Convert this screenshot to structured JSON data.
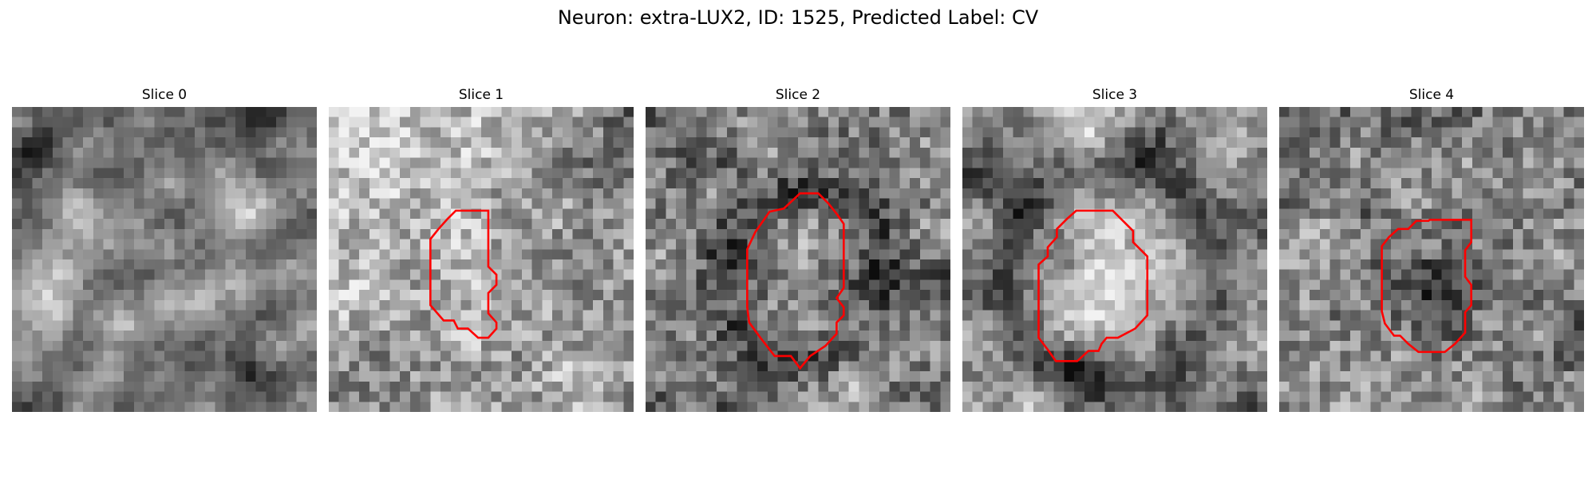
{
  "figure": {
    "title": "Neuron: extra-LUX2, ID: 1525, Predicted Label: CV",
    "contour_color": "#ff0000",
    "colormap": "gray"
  },
  "slices": [
    {
      "label": "Slice 0",
      "seed": 11,
      "pattern": "blotchy",
      "contour": []
    },
    {
      "label": "Slice 1",
      "seed": 23,
      "pattern": "bright-left",
      "contour": [
        [
          10,
          13
        ],
        [
          10.8,
          12
        ],
        [
          11.7,
          11
        ],
        [
          12.5,
          10.2
        ],
        [
          15.7,
          10.2
        ],
        [
          15.7,
          15.7
        ],
        [
          16.5,
          16.5
        ],
        [
          16.5,
          17.5
        ],
        [
          15.7,
          18.3
        ],
        [
          15.7,
          20.3
        ],
        [
          16.5,
          21.2
        ],
        [
          16.5,
          21.8
        ],
        [
          15.7,
          22.7
        ],
        [
          14.7,
          22.7
        ],
        [
          13.7,
          21.8
        ],
        [
          12.7,
          21.8
        ],
        [
          12.3,
          21
        ],
        [
          11.3,
          21
        ],
        [
          10,
          19.5
        ],
        [
          10,
          15.3
        ]
      ]
    },
    {
      "label": "Slice 2",
      "seed": 37,
      "pattern": "dark-ring",
      "contour": [
        [
          10,
          14
        ],
        [
          10.8,
          12.3
        ],
        [
          12.2,
          10.3
        ],
        [
          13.6,
          10
        ],
        [
          15.2,
          8.5
        ],
        [
          17,
          8.5
        ],
        [
          18,
          9.5
        ],
        [
          18.8,
          10.5
        ],
        [
          19.5,
          11.5
        ],
        [
          19.5,
          17.8
        ],
        [
          18.8,
          18.8
        ],
        [
          19.5,
          19.7
        ],
        [
          19.5,
          20.5
        ],
        [
          18.8,
          21.2
        ],
        [
          18.8,
          22.3
        ],
        [
          17.7,
          23.5
        ],
        [
          16.2,
          24.5
        ],
        [
          15.2,
          25.7
        ],
        [
          14.3,
          24.5
        ],
        [
          12.7,
          24.5
        ],
        [
          11.3,
          22.7
        ],
        [
          10.2,
          21.2
        ],
        [
          10,
          19.7
        ]
      ]
    },
    {
      "label": "Slice 3",
      "seed": 41,
      "pattern": "bright-center",
      "contour": [
        [
          7.5,
          18.5
        ],
        [
          7.5,
          15.5
        ],
        [
          8.4,
          14.7
        ],
        [
          8.4,
          13.8
        ],
        [
          9.3,
          12.8
        ],
        [
          9.3,
          12
        ],
        [
          10.3,
          11
        ],
        [
          11.2,
          10.2
        ],
        [
          14.8,
          10.2
        ],
        [
          16.8,
          12.2
        ],
        [
          16.8,
          13.3
        ],
        [
          18.2,
          14.7
        ],
        [
          18.2,
          20.5
        ],
        [
          17,
          21.8
        ],
        [
          15.3,
          22.7
        ],
        [
          14.2,
          22.7
        ],
        [
          13.7,
          23.3
        ],
        [
          13.4,
          24
        ],
        [
          12.4,
          24
        ],
        [
          11.3,
          25
        ],
        [
          9.2,
          25
        ],
        [
          8.5,
          24
        ],
        [
          7.5,
          22.7
        ]
      ]
    },
    {
      "label": "Slice 4",
      "seed": 53,
      "pattern": "dark-center",
      "contour": [
        [
          10.1,
          13.7
        ],
        [
          10.8,
          12.8
        ],
        [
          11.7,
          12
        ],
        [
          12.7,
          12
        ],
        [
          13.5,
          11.2
        ],
        [
          14.7,
          11.2
        ],
        [
          14.8,
          11.1
        ],
        [
          18.9,
          11.1
        ],
        [
          18.9,
          13.3
        ],
        [
          18.3,
          14.1
        ],
        [
          18.3,
          16.7
        ],
        [
          18.9,
          17.5
        ],
        [
          18.9,
          19.5
        ],
        [
          18.3,
          20.2
        ],
        [
          18.3,
          22.2
        ],
        [
          17.3,
          23.3
        ],
        [
          16.3,
          24.1
        ],
        [
          13.7,
          24.1
        ],
        [
          12.7,
          23.3
        ],
        [
          11.9,
          22.5
        ],
        [
          11.3,
          22.5
        ],
        [
          10.4,
          21.3
        ],
        [
          10.1,
          20.1
        ]
      ]
    }
  ]
}
